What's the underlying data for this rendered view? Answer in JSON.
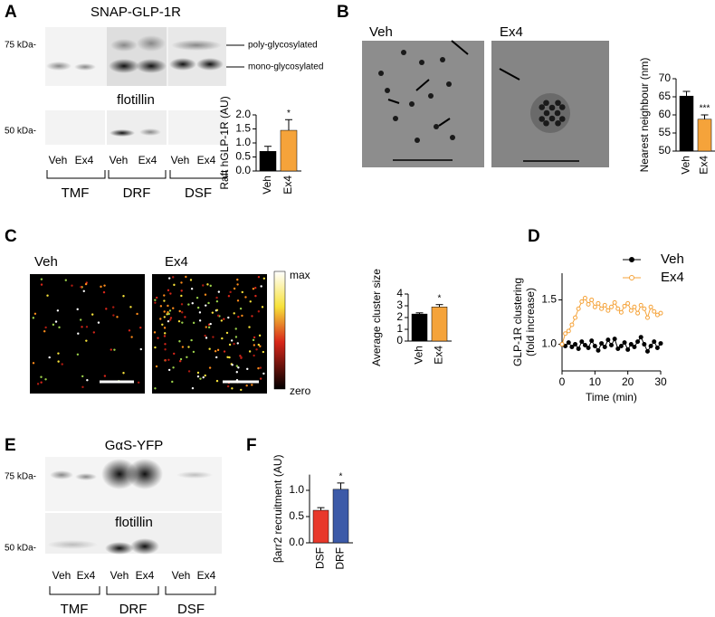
{
  "panels": {
    "A": {
      "letter": "A",
      "title": "SNAP-GLP-1R",
      "marker_top": "75 kDa-",
      "band_upper": "poly-glycosylated",
      "band_lower": "mono-glycosylated",
      "blot2": "flotillin",
      "marker_bottom": "50 kDa-",
      "lanes": [
        "Veh",
        "Ex4",
        "Veh",
        "Ex4",
        "Veh",
        "Ex4"
      ],
      "groups": [
        "TMF",
        "DRF",
        "DSF"
      ]
    },
    "B": {
      "letter": "B",
      "images": [
        "Veh",
        "Ex4"
      ]
    },
    "C": {
      "letter": "C",
      "images": [
        "Veh",
        "Ex4"
      ],
      "scale_max": "max",
      "scale_min": "zero"
    },
    "D": {
      "letter": "D"
    },
    "E": {
      "letter": "E",
      "title": "GαS-YFP",
      "marker_top": "75 kDa-",
      "blot2": "flotillin",
      "marker_bottom": "50 kDa-",
      "lanes": [
        "Veh",
        "Ex4",
        "Veh",
        "Ex4",
        "Veh",
        "Ex4"
      ],
      "groups": [
        "TMF",
        "DRF",
        "DSF"
      ]
    },
    "F": {
      "letter": "F"
    }
  },
  "chart_data": [
    {
      "type": "bar",
      "ylabel": "Raft hGLP-1R (AU)",
      "categories": [
        "Veh",
        "Ex4"
      ],
      "values": [
        0.7,
        1.45
      ],
      "errors": [
        0.18,
        0.38
      ],
      "colors": [
        "#000000",
        "#f5a33a"
      ],
      "ylim": [
        0,
        2
      ],
      "yticks": [
        {
          "value": 0,
          "label": "0.0"
        },
        0.5,
        {
          "value": 1,
          "label": "1.0"
        },
        1.5,
        {
          "value": 2,
          "label": "2.0"
        }
      ],
      "annotation": "*"
    },
    {
      "type": "bar",
      "ylabel": "Nearest neighbour (nm)",
      "categories": [
        "Veh",
        "Ex4"
      ],
      "values": [
        65.2,
        58.8
      ],
      "errors": [
        1.3,
        1.2
      ],
      "colors": [
        "#000000",
        "#f5a33a"
      ],
      "ylim": [
        50,
        70
      ],
      "yticks": [
        50,
        55,
        60,
        65,
        70
      ],
      "annotation": "***"
    },
    {
      "type": "bar",
      "ylabel": "Average cluster size",
      "categories": [
        "Veh",
        "Ex4"
      ],
      "values": [
        2.3,
        2.9
      ],
      "errors": [
        0.1,
        0.2
      ],
      "colors": [
        "#000000",
        "#f5a33a"
      ],
      "ylim": [
        0,
        4
      ],
      "yticks": [
        0,
        1,
        2,
        3,
        4
      ],
      "annotation": "*"
    },
    {
      "type": "line",
      "ylabel": "GLP-1R clustering",
      "ylabel2": "(fold increase)",
      "xlabel": "Time (min)",
      "x": [
        0,
        1,
        2,
        3,
        4,
        5,
        6,
        7,
        8,
        9,
        10,
        11,
        12,
        13,
        14,
        15,
        16,
        17,
        18,
        19,
        20,
        21,
        22,
        23,
        24,
        25,
        26,
        27,
        28,
        29,
        30
      ],
      "series": [
        {
          "name": "Veh",
          "color": "#000000",
          "values": [
            1.0,
            0.98,
            1.02,
            0.97,
            1.0,
            0.95,
            1.03,
            0.99,
            0.96,
            1.04,
            0.98,
            0.93,
            1.01,
            0.97,
            1.05,
            0.99,
            1.06,
            0.95,
            0.98,
            1.02,
            0.94,
            1.0,
            0.97,
            1.03,
            1.08,
            1.0,
            0.92,
            0.98,
            1.03,
            0.96,
            1.01
          ]
        },
        {
          "name": "Ex4",
          "color": "#f5a33a",
          "values": [
            1.0,
            1.12,
            1.15,
            1.22,
            1.3,
            1.4,
            1.48,
            1.52,
            1.45,
            1.5,
            1.42,
            1.46,
            1.4,
            1.44,
            1.38,
            1.42,
            1.47,
            1.4,
            1.36,
            1.43,
            1.46,
            1.38,
            1.42,
            1.35,
            1.44,
            1.4,
            1.3,
            1.42,
            1.37,
            1.33,
            1.35
          ]
        }
      ],
      "xlim": [
        0,
        30
      ],
      "xticks": [
        0,
        10,
        20,
        30
      ],
      "ylim": [
        0.7,
        1.8
      ],
      "yticks": [
        {
          "value": 1,
          "label": "1.0"
        },
        1.5
      ]
    },
    {
      "type": "bar",
      "ylabel": "βarr2 recruitment (AU)",
      "categories": [
        "DSF",
        "DRF"
      ],
      "values": [
        0.62,
        1.02
      ],
      "errors": [
        0.05,
        0.12
      ],
      "colors": [
        "#e8382b",
        "#3c5aa8"
      ],
      "ylim": [
        0,
        1.3
      ],
      "yticks": [
        {
          "value": 0,
          "label": "0.0"
        },
        0.5,
        {
          "value": 1,
          "label": "1.0"
        }
      ],
      "annotation": "*"
    }
  ]
}
